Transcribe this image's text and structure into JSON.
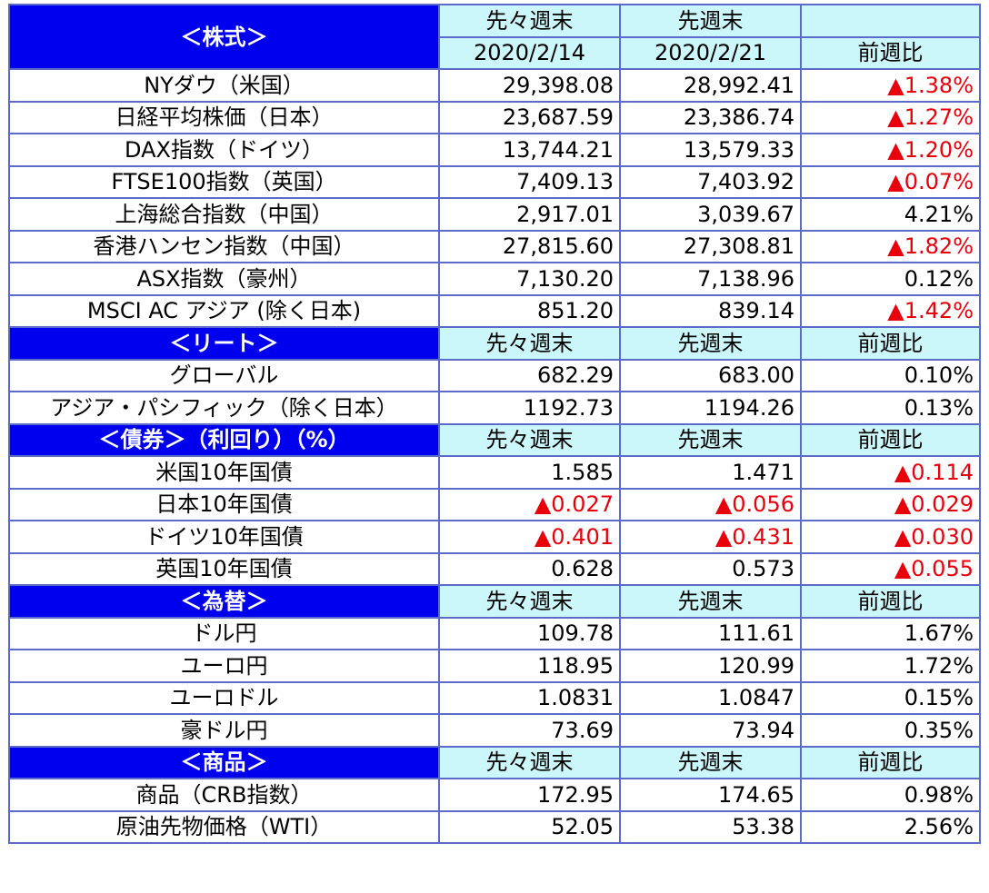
{
  "colors": {
    "section_header_bg": "#0000ee",
    "section_header_text": "#ffffff",
    "column_header_bg": "#ccf7fa",
    "negative_text": "#e8000b",
    "grid_border": "#5b6bc9"
  },
  "stocks": {
    "title": "＜株式＞",
    "prev_week_label": "先々週末",
    "curr_week_label": "先週末",
    "prev_date": "2020/2/14",
    "curr_date": "2020/2/21",
    "change_label": "前週比",
    "rows": [
      {
        "name": "NYダウ（米国）",
        "prev": "29,398.08",
        "curr": "28,992.41",
        "change": "▲1.38%",
        "change_negative": true
      },
      {
        "name": "日経平均株価（日本）",
        "prev": "23,687.59",
        "curr": "23,386.74",
        "change": "▲1.27%",
        "change_negative": true
      },
      {
        "name": "DAX指数（ドイツ）",
        "prev": "13,744.21",
        "curr": "13,579.33",
        "change": "▲1.20%",
        "change_negative": true
      },
      {
        "name": "FTSE100指数（英国）",
        "prev": "7,409.13",
        "curr": "7,403.92",
        "change": "▲0.07%",
        "change_negative": true
      },
      {
        "name": "上海総合指数（中国）",
        "prev": "2,917.01",
        "curr": "3,039.67",
        "change": "4.21%",
        "change_negative": false
      },
      {
        "name": "香港ハンセン指数（中国）",
        "prev": "27,815.60",
        "curr": "27,308.81",
        "change": "▲1.82%",
        "change_negative": true
      },
      {
        "name": "ASX指数（豪州）",
        "prev": "7,130.20",
        "curr": "7,138.96",
        "change": "0.12%",
        "change_negative": false
      },
      {
        "name": "MSCI AC アジア (除く日本)",
        "prev": "851.20",
        "curr": "839.14",
        "change": "▲1.42%",
        "change_negative": true
      }
    ]
  },
  "reit": {
    "title": "＜リート＞",
    "prev_week_label": "先々週末",
    "curr_week_label": "先週末",
    "change_label": "前週比",
    "rows": [
      {
        "name": "グローバル",
        "prev": "682.29",
        "curr": "683.00",
        "change": "0.10%",
        "change_negative": false
      },
      {
        "name": "アジア・パシフィック（除く日本）",
        "prev": "1192.73",
        "curr": "1194.26",
        "change": "0.13%",
        "change_negative": false
      }
    ]
  },
  "bonds": {
    "title": "＜債券＞（利回り）（%）",
    "prev_week_label": "先々週末",
    "curr_week_label": "先週末",
    "change_label": "前週比",
    "rows": [
      {
        "name": "米国10年国債",
        "prev": "1.585",
        "prev_negative": false,
        "curr": "1.471",
        "curr_negative": false,
        "change": "▲0.114",
        "change_negative": true
      },
      {
        "name": "日本10年国債",
        "prev": "▲0.027",
        "prev_negative": true,
        "curr": "▲0.056",
        "curr_negative": true,
        "change": "▲0.029",
        "change_negative": true
      },
      {
        "name": "ドイツ10年国債",
        "prev": "▲0.401",
        "prev_negative": true,
        "curr": "▲0.431",
        "curr_negative": true,
        "change": "▲0.030",
        "change_negative": true
      },
      {
        "name": "英国10年国債",
        "prev": "0.628",
        "prev_negative": false,
        "curr": "0.573",
        "curr_negative": false,
        "change": "▲0.055",
        "change_negative": true
      }
    ]
  },
  "fx": {
    "title": "＜為替＞",
    "prev_week_label": "先々週末",
    "curr_week_label": "先週末",
    "change_label": "前週比",
    "rows": [
      {
        "name": "ドル円",
        "prev": "109.78",
        "curr": "111.61",
        "change": "1.67%",
        "change_negative": false
      },
      {
        "name": "ユーロ円",
        "prev": "118.95",
        "curr": "120.99",
        "change": "1.72%",
        "change_negative": false
      },
      {
        "name": "ユーロドル",
        "prev": "1.0831",
        "curr": "1.0847",
        "change": "0.15%",
        "change_negative": false
      },
      {
        "name": "豪ドル円",
        "prev": "73.69",
        "curr": "73.94",
        "change": "0.35%",
        "change_negative": false
      }
    ]
  },
  "commodities": {
    "title": "＜商品＞",
    "prev_week_label": "先々週末",
    "curr_week_label": "先週末",
    "change_label": "前週比",
    "rows": [
      {
        "name": "商品（CRB指数）",
        "prev": "172.95",
        "curr": "174.65",
        "change": "0.98%",
        "change_negative": false
      },
      {
        "name": "原油先物価格（WTI）",
        "prev": "52.05",
        "curr": "53.38",
        "change": "2.56%",
        "change_negative": false
      }
    ]
  }
}
